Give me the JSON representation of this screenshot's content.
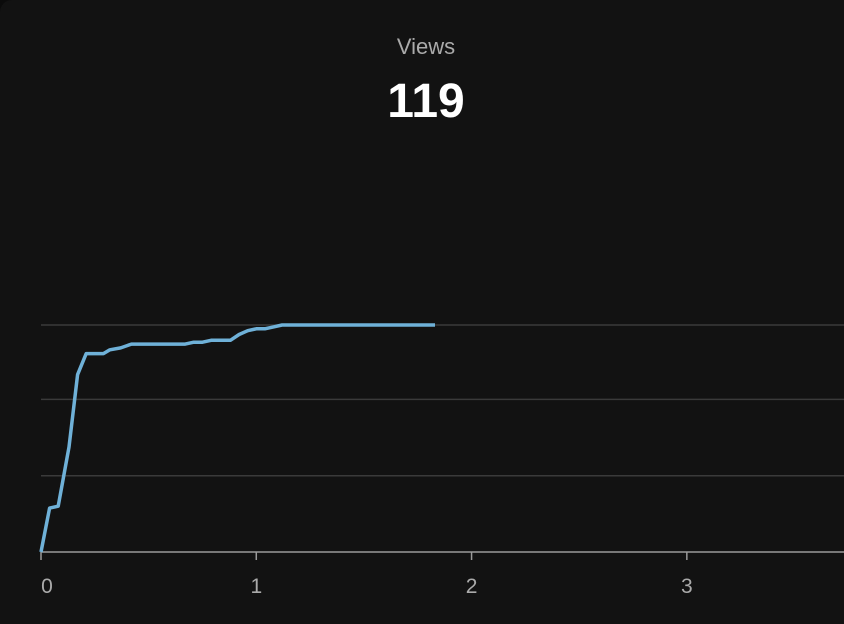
{
  "metric": {
    "label": "Views",
    "value": "119"
  },
  "chart_data": {
    "type": "line",
    "title": "Views",
    "xlabel": "",
    "ylabel": "",
    "xlim": [
      0,
      3.73
    ],
    "ylim": [
      0,
      119
    ],
    "x_ticks": [
      "0",
      "1",
      "2",
      "3"
    ],
    "y_grid_values": [
      40,
      80,
      119
    ],
    "grid": true,
    "legend": "none",
    "colors": {
      "line": "#6fb1d8",
      "grid": "#3a3a3a",
      "axis": "#9a9a9a",
      "background": "#121212"
    },
    "series": [
      {
        "values_xy": [
          [
            0,
            0
          ],
          [
            0.04,
            23
          ],
          [
            0.08,
            24
          ],
          [
            0.13,
            55
          ],
          [
            0.17,
            93
          ],
          [
            0.21,
            104
          ],
          [
            0.29,
            104
          ],
          [
            0.32,
            106
          ],
          [
            0.37,
            107
          ],
          [
            0.42,
            109
          ],
          [
            0.67,
            109
          ],
          [
            0.71,
            110
          ],
          [
            0.75,
            110
          ],
          [
            0.79,
            111
          ],
          [
            0.88,
            111
          ],
          [
            0.92,
            114
          ],
          [
            0.96,
            116
          ],
          [
            1.0,
            117
          ],
          [
            1.04,
            117
          ],
          [
            1.08,
            118
          ],
          [
            1.12,
            119
          ],
          [
            1.83,
            119
          ]
        ]
      }
    ]
  }
}
